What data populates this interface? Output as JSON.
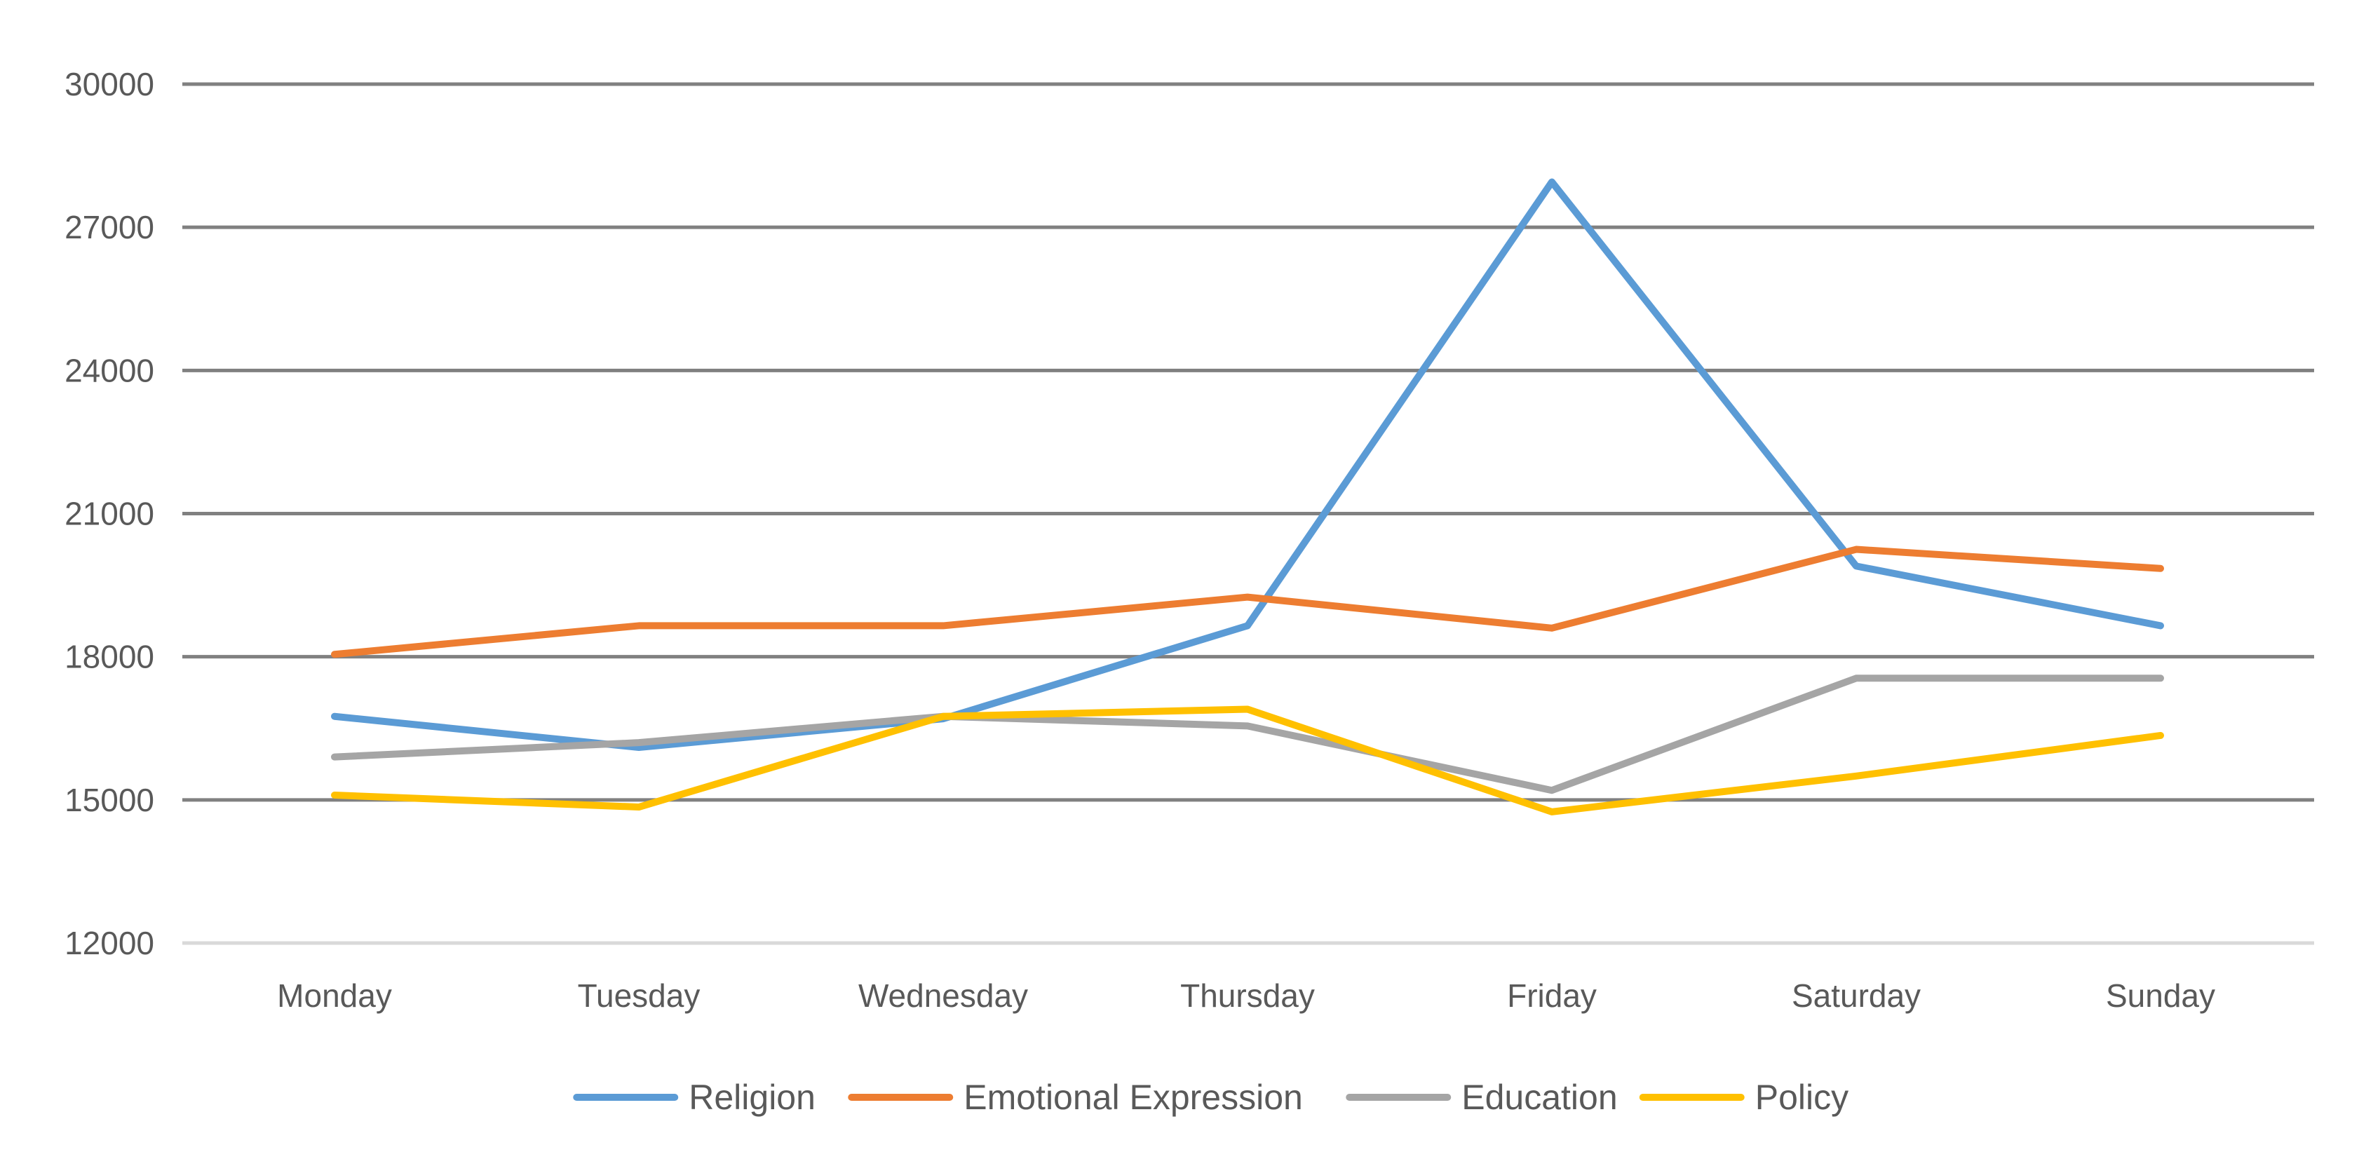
{
  "chart_data": {
    "type": "line",
    "title": "",
    "xlabel": "",
    "ylabel": "",
    "categories": [
      "Monday",
      "Tuesday",
      "Wednesday",
      "Thursday",
      "Friday",
      "Saturday",
      "Sunday"
    ],
    "ylim": [
      12000,
      30000
    ],
    "yticks": [
      12000,
      15000,
      18000,
      21000,
      24000,
      27000,
      30000
    ],
    "ytick_labels": [
      "12000",
      "15000",
      "18000",
      "21000",
      "24000",
      "27000",
      "30000"
    ],
    "grid": true,
    "legend_position": "bottom",
    "series": [
      {
        "name": "Religion",
        "color": "#5b9bd5",
        "values": [
          16750,
          16100,
          16700,
          18650,
          27950,
          19900,
          18650
        ]
      },
      {
        "name": "Emotional Expression",
        "color": "#ed7d31",
        "values": [
          18050,
          18650,
          18650,
          19250,
          18600,
          20250,
          19850
        ]
      },
      {
        "name": "Education",
        "color": "#a5a5a5",
        "values": [
          15900,
          16200,
          16750,
          16550,
          15200,
          17550,
          17550
        ]
      },
      {
        "name": "Policy",
        "color": "#ffc000",
        "values": [
          15100,
          14850,
          16750,
          16900,
          14750,
          15500,
          16350
        ]
      }
    ]
  }
}
